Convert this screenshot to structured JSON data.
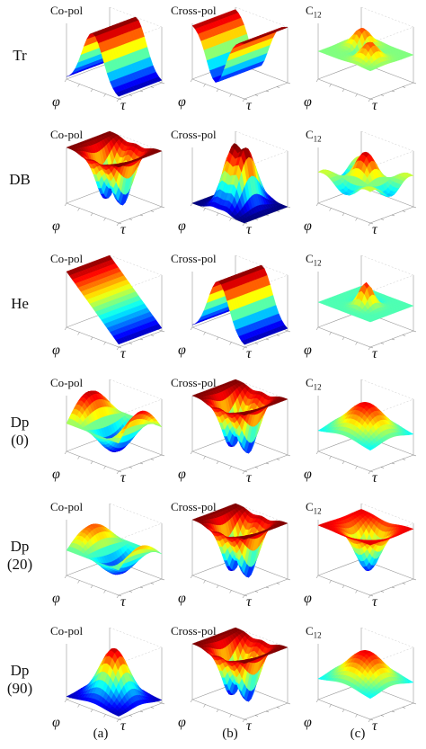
{
  "rows": [
    {
      "label_lines": [
        "Tr"
      ],
      "panels": [
        {
          "title": "Co-pol",
          "surface": "ridge_u"
        },
        {
          "title": "Cross-pol",
          "surface": "valley_u"
        },
        {
          "title": "C",
          "title_sub": "12",
          "surface": "saddle_flat"
        }
      ]
    },
    {
      "label_lines": [
        "DB"
      ],
      "panels": [
        {
          "title": "Co-pol",
          "surface": "plateau_dip"
        },
        {
          "title": "Cross-pol",
          "surface": "twin_peaks"
        },
        {
          "title": "C",
          "title_sub": "12",
          "surface": "ring_saddle"
        }
      ]
    },
    {
      "label_lines": [
        "He"
      ],
      "panels": [
        {
          "title": "Co-pol",
          "surface": "slope_down"
        },
        {
          "title": "Cross-pol",
          "surface": "ridge_u"
        },
        {
          "title": "C",
          "title_sub": "12",
          "surface": "single_peak_flat"
        }
      ]
    },
    {
      "label_lines": [
        "Dp",
        "(0)"
      ],
      "panels": [
        {
          "title": "Co-pol",
          "surface": "wave"
        },
        {
          "title": "Cross-pol",
          "surface": "plateau_dip"
        },
        {
          "title": "C",
          "title_sub": "12",
          "surface": "dome_flat"
        }
      ]
    },
    {
      "label_lines": [
        "Dp",
        "(20)"
      ],
      "panels": [
        {
          "title": "Co-pol",
          "surface": "wave_low"
        },
        {
          "title": "Cross-pol",
          "surface": "plateau_dip"
        },
        {
          "title": "C",
          "title_sub": "12",
          "surface": "sheet_dip"
        }
      ]
    },
    {
      "label_lines": [
        "Dp",
        "(90)"
      ],
      "panels": [
        {
          "title": "Co-pol",
          "surface": "dome"
        },
        {
          "title": "Cross-pol",
          "surface": "plateau_dip"
        },
        {
          "title": "C",
          "title_sub": "12",
          "surface": "dome_flat"
        }
      ]
    }
  ],
  "axis_symbols": {
    "phi": "φ",
    "tau": "τ"
  },
  "column_labels": [
    "(a)",
    "(b)",
    "(c)"
  ]
}
